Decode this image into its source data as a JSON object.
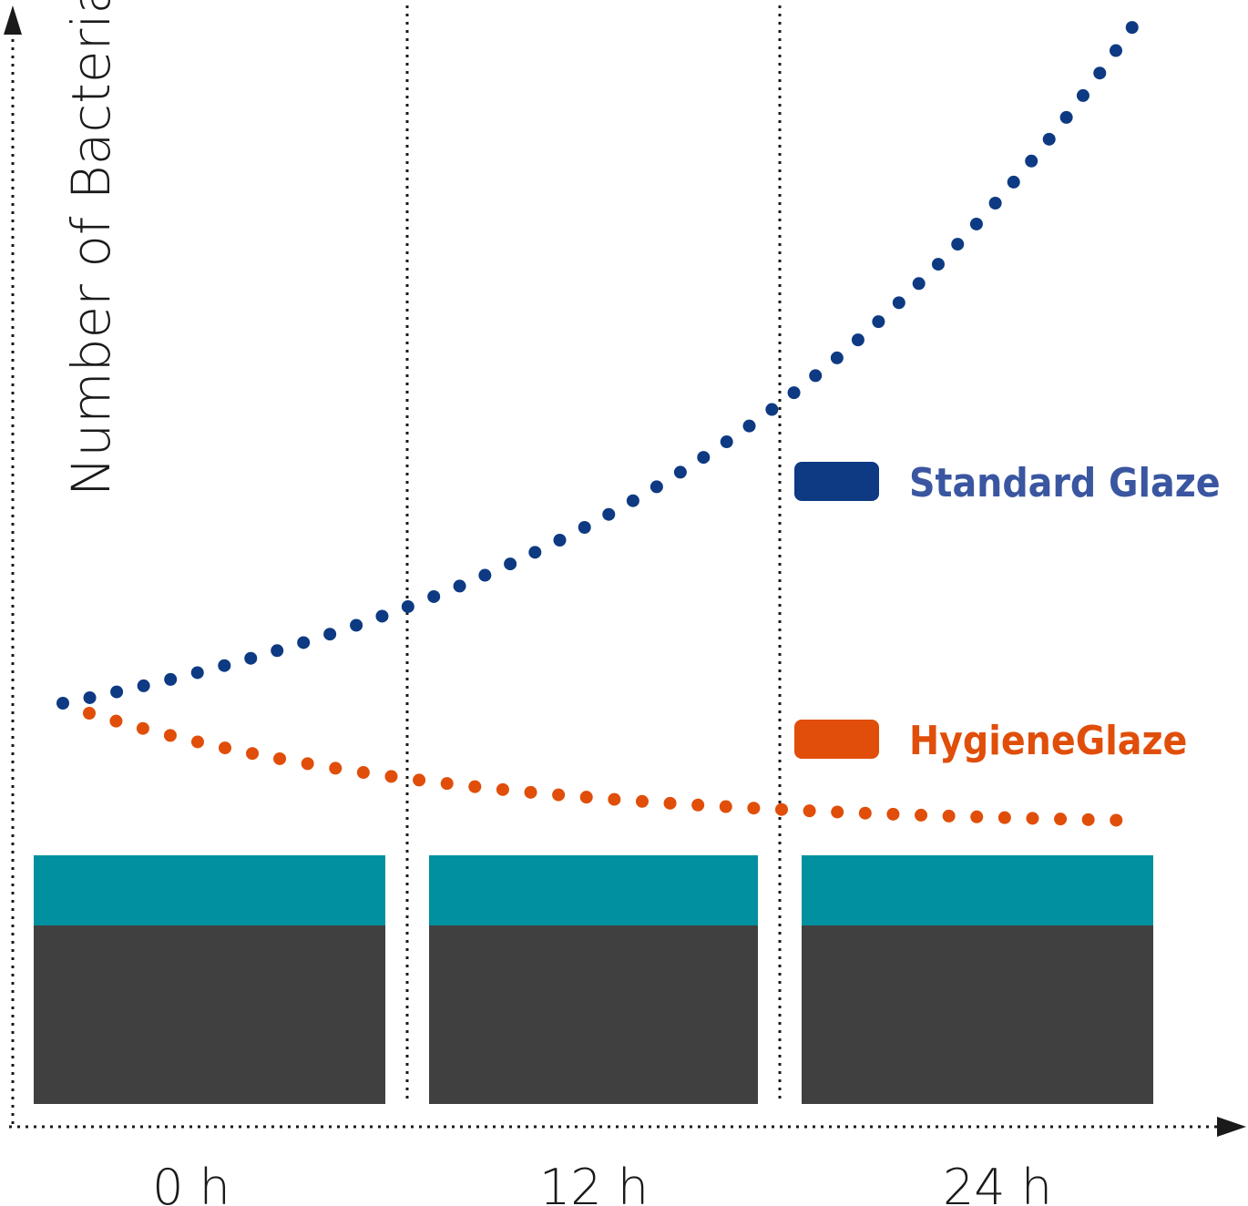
{
  "axes": {
    "y_label": "Number of Bacteria",
    "x_labels": [
      "0 h",
      "12 h",
      "24 h"
    ]
  },
  "legend": [
    {
      "label": "Standard Glaze"
    },
    {
      "label": "HygieneGlaze"
    }
  ]
}
